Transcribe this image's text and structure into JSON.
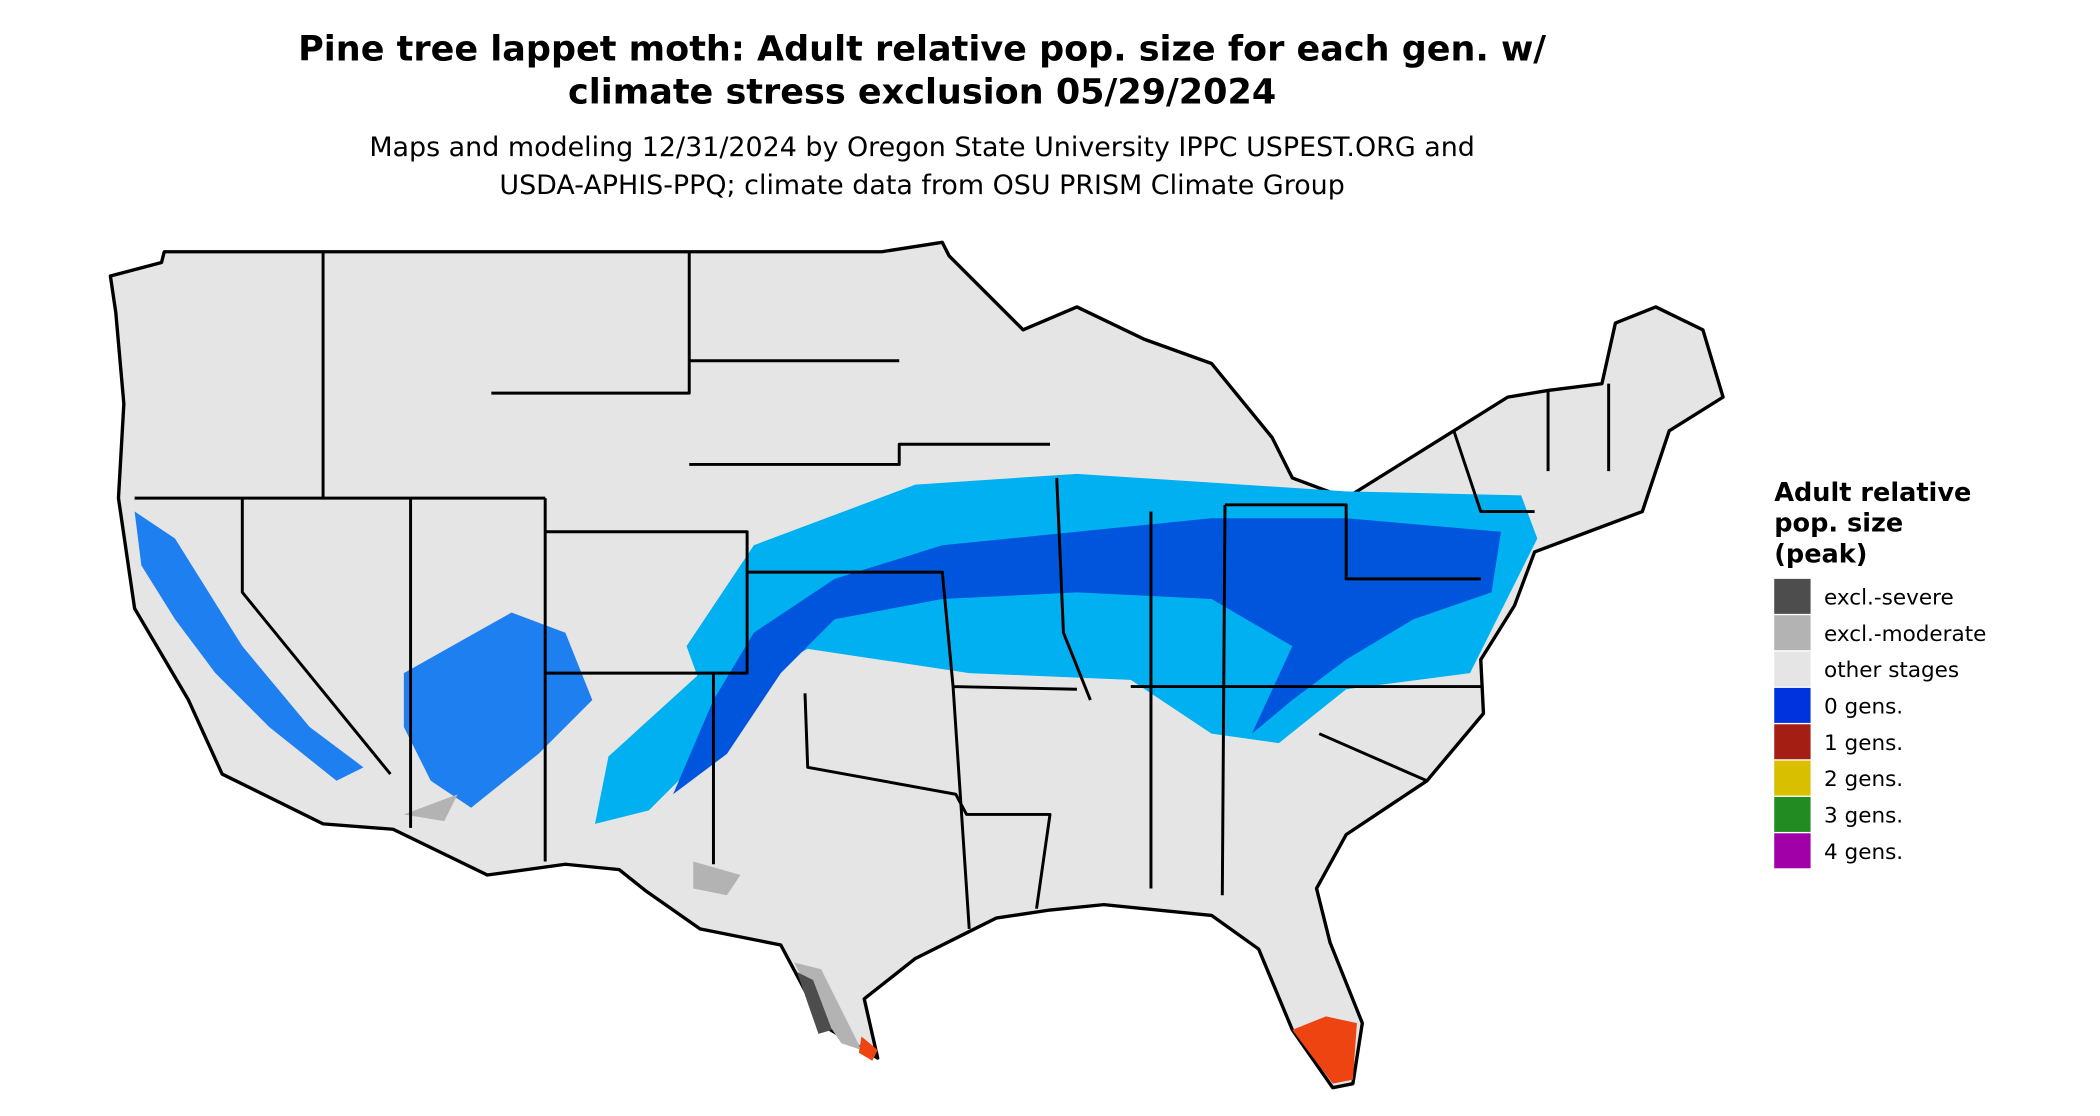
{
  "title": [
    "Pine tree lappet moth: Adult relative pop. size for each gen. w/",
    "climate stress exclusion 05/29/2024"
  ],
  "subtitle": [
    "Maps and modeling 12/31/2024 by Oregon State University IPPC USPEST.ORG and",
    "USDA-APHIS-PPQ; climate data from OSU PRISM Climate Group"
  ],
  "legend": {
    "title": [
      "Adult relative",
      "pop. size",
      "(peak)"
    ],
    "items": [
      {
        "name": "excl.-severe",
        "color": "#4d4d4d"
      },
      {
        "name": "excl.-moderate",
        "color": "#b3b3b3"
      },
      {
        "name": "other stages",
        "color": "#e5e5e5"
      },
      {
        "name": "0 gens.",
        "color": "#0033dd"
      },
      {
        "name": "1 gens.",
        "color": "#a51e14"
      },
      {
        "name": "2 gens.",
        "color": "#d8bf00"
      },
      {
        "name": "3 gens.",
        "color": "#228b22"
      },
      {
        "name": "4 gens.",
        "color": "#a100a8"
      }
    ]
  }
}
